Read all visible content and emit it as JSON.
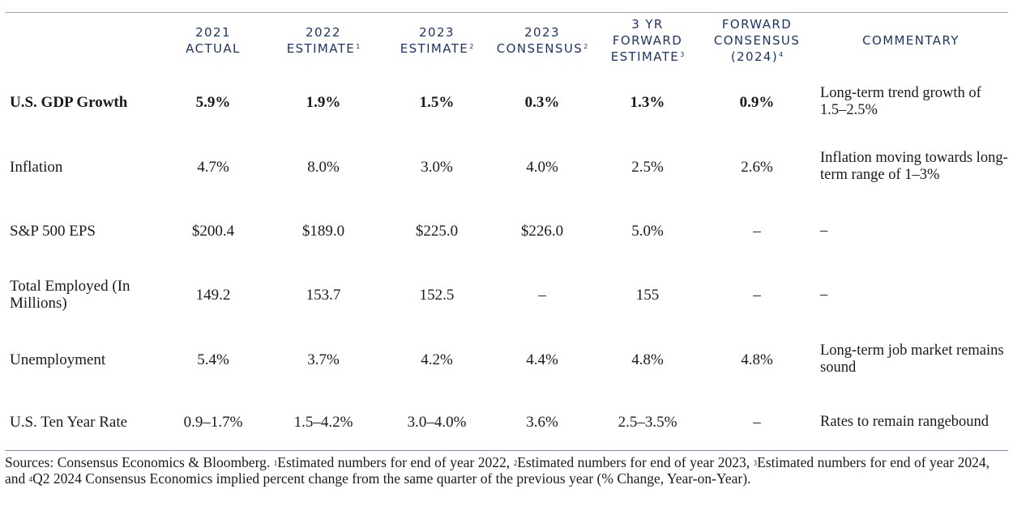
{
  "table": {
    "headers": [
      {
        "lines": [
          "2021",
          "ACTUAL"
        ],
        "sup": ""
      },
      {
        "lines": [
          "2022",
          "ESTIMATE"
        ],
        "sup": "1"
      },
      {
        "lines": [
          "2023",
          "ESTIMATE"
        ],
        "sup": "2"
      },
      {
        "lines": [
          "2023",
          "CONSENSUS"
        ],
        "sup": "2"
      },
      {
        "lines": [
          "3 YR",
          "FORWARD",
          "ESTIMATE"
        ],
        "sup": "3"
      },
      {
        "lines": [
          "FORWARD",
          "CONSENSUS",
          "(2024)"
        ],
        "sup": "4"
      },
      {
        "lines": [
          "COMMENTARY"
        ],
        "sup": ""
      }
    ],
    "rows": [
      {
        "label": "U.S. GDP Growth",
        "values": [
          "5.9%",
          "1.9%",
          "1.5%",
          "0.3%",
          "1.3%",
          "0.9%"
        ],
        "commentary": "Long-term trend growth of 1.5–2.5%"
      },
      {
        "label": "Inflation",
        "values": [
          "4.7%",
          "8.0%",
          "3.0%",
          "4.0%",
          "2.5%",
          "2.6%"
        ],
        "commentary": "Inflation moving towards long-term range of 1–3%"
      },
      {
        "label": "S&P 500 EPS",
        "values": [
          "$200.4",
          "$189.0",
          "$225.0",
          "$226.0",
          "5.0%",
          "–"
        ],
        "commentary": "–"
      },
      {
        "label": "Total Employed (In Millions)",
        "values": [
          "149.2",
          "153.7",
          "152.5",
          "–",
          "155",
          "–"
        ],
        "commentary": "–"
      },
      {
        "label": "Unemployment",
        "values": [
          "5.4%",
          "3.7%",
          "4.2%",
          "4.4%",
          "4.8%",
          "4.8%"
        ],
        "commentary": "Long-term job market remains sound"
      },
      {
        "label": "U.S. Ten Year Rate",
        "values": [
          "0.9–1.7%",
          "1.5–4.2%",
          "3.0–4.0%",
          "3.6%",
          "2.5–3.5%",
          "–"
        ],
        "commentary": "Rates to remain rangebound"
      }
    ]
  },
  "footnote": {
    "lead": "Sources: Consensus Economics & Bloomberg.",
    "notes": [
      {
        "sup": "1",
        "text": "Estimated numbers for end of year 2022,"
      },
      {
        "sup": "2",
        "text": "Estimated numbers for end of year 2023,"
      },
      {
        "sup": "3",
        "text": "Estimated numbers for end of year 2024, and"
      },
      {
        "sup": "4",
        "text": "Q2 2024 Consensus Economics implied percent change from the same quarter of the previous year (% Change, Year-on-Year)."
      }
    ]
  }
}
